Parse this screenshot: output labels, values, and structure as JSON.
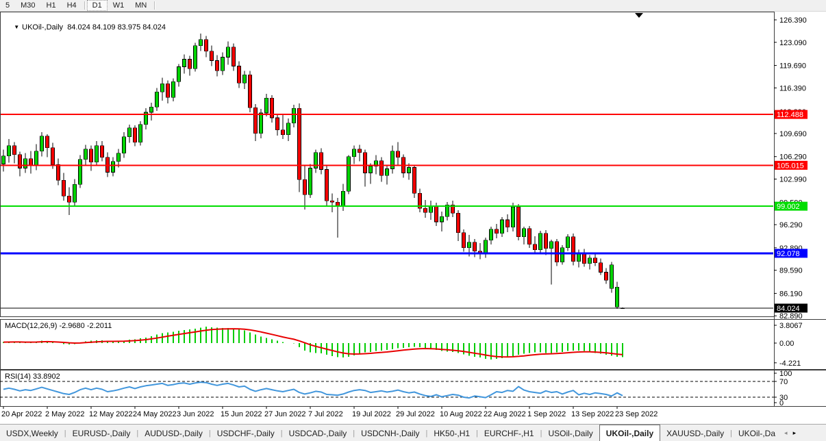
{
  "toolbar": {
    "timeframe_groups": [
      [
        "5",
        "M30",
        "H1",
        "H4"
      ],
      [
        "D1",
        "W1",
        "MN"
      ]
    ],
    "active_timeframe": "D1"
  },
  "chart": {
    "title_symbol": "UKOil-,Daily",
    "title_ohlc": "84.024 84.109 83.975 84.024",
    "colors": {
      "bull": "#00d400",
      "bear": "#f40000",
      "wick": "#000000",
      "macd_bar": "#00cc00",
      "macd_signal": "#e80000",
      "rsi_line": "#4196dc",
      "line_red": "#ff0000",
      "line_green": "#00dd00",
      "line_blue": "#0000ff",
      "bid_line": "#000000"
    }
  },
  "price_axis": {
    "ticks": [
      "126.390",
      "123.090",
      "119.690",
      "116.390",
      "112.890",
      "109.690",
      "106.290",
      "102.990",
      "99.590",
      "96.290",
      "92.890",
      "89.590",
      "86.190",
      "82.890"
    ],
    "line_labels": [
      {
        "text": "112.488",
        "bg": "#ff0000",
        "fg": "#ffffff"
      },
      {
        "text": "105.015",
        "bg": "#ff0000",
        "fg": "#ffffff"
      },
      {
        "text": "99.002",
        "bg": "#00dd00",
        "fg": "#ffffff"
      },
      {
        "text": "92.078",
        "bg": "#0000ff",
        "fg": "#ffffff"
      },
      {
        "text": "84.024",
        "bg": "#000000",
        "fg": "#ffffff"
      }
    ]
  },
  "macd_panel": {
    "label": "MACD(12,26,9) -2.9680 -2.2011",
    "scale": [
      "3.8067",
      "0.00",
      "-4.221"
    ]
  },
  "rsi_panel": {
    "label": "RSI(14) 33.8902",
    "scale": [
      "100",
      "70",
      "30",
      "0"
    ],
    "levels": [
      70,
      30
    ]
  },
  "x_axis": {
    "labels": [
      "20 Apr 2022",
      "2 May 2022",
      "12 May 2022",
      "24 May 2022",
      "3 Jun 2022",
      "15 Jun 2022",
      "27 Jun 2022",
      "7 Jul 2022",
      "19 Jul 2022",
      "29 Jul 2022",
      "10 Aug 2022",
      "22 Aug 2022",
      "1 Sep 2022",
      "13 Sep 2022",
      "23 Sep 2022"
    ],
    "label_bar_index": [
      0,
      8,
      16,
      24,
      32,
      40,
      48,
      56,
      64,
      72,
      80,
      88,
      96,
      104,
      112
    ]
  },
  "tabs": {
    "items": [
      "USDX,Weekly",
      "EURUSD-,Daily",
      "AUDUSD-,Daily",
      "USDCHF-,Daily",
      "USDCAD-,Daily",
      "USDCNH-,Daily",
      "HK50-,H1",
      "EURCHF-,H1",
      "USOil-,Daily",
      "UKOil-,Daily",
      "XAUUSD-,Daily",
      "UKOil-,Da"
    ],
    "active": "UKOil-,Daily",
    "nav_left": "◂",
    "nav_right": "▸"
  },
  "chart_data": {
    "type": "candlestick",
    "symbol": "UKOil-",
    "timeframe": "Daily",
    "ylim": [
      82.0,
      126.39
    ],
    "hlines": [
      {
        "price": 112.488,
        "color": "#ff0000",
        "w": 2
      },
      {
        "price": 105.015,
        "color": "#ff0000",
        "w": 2
      },
      {
        "price": 99.002,
        "color": "#00dd00",
        "w": 2
      },
      {
        "price": 92.078,
        "color": "#0000ff",
        "w": 3
      },
      {
        "price": 84.024,
        "color": "#000000",
        "w": 1
      }
    ],
    "candles": [
      [
        "20 Apr",
        105.2,
        107.3,
        104.1,
        106.4
      ],
      [
        "21 Apr",
        106.4,
        108.9,
        105.4,
        107.9
      ],
      [
        "22 Apr",
        107.9,
        108.4,
        105.3,
        106.6
      ],
      [
        "25 Apr",
        106.6,
        107.0,
        103.4,
        104.6
      ],
      [
        "26 Apr",
        104.6,
        106.8,
        103.9,
        106.0
      ],
      [
        "27 Apr",
        106.0,
        107.1,
        103.8,
        105.0
      ],
      [
        "28 Apr",
        105.0,
        108.1,
        104.3,
        107.1
      ],
      [
        "29 Apr",
        107.1,
        109.9,
        106.3,
        109.3
      ],
      [
        "2 May",
        109.3,
        109.6,
        106.2,
        107.6
      ],
      [
        "3 May",
        107.6,
        108.3,
        104.5,
        105.1
      ],
      [
        "4 May",
        105.1,
        106.0,
        102.1,
        102.8
      ],
      [
        "5 May",
        102.8,
        103.9,
        99.8,
        100.5
      ],
      [
        "6 May",
        100.5,
        101.8,
        97.7,
        99.6
      ],
      [
        "9 May",
        99.6,
        103.0,
        98.9,
        102.2
      ],
      [
        "10 May",
        102.2,
        106.5,
        101.7,
        105.9
      ],
      [
        "11 May",
        105.9,
        108.0,
        104.9,
        107.4
      ],
      [
        "12 May",
        107.4,
        107.9,
        104.2,
        105.5
      ],
      [
        "13 May",
        105.5,
        108.6,
        105.0,
        107.9
      ],
      [
        "16 May",
        107.9,
        108.6,
        105.6,
        106.2
      ],
      [
        "17 May",
        106.2,
        106.9,
        103.3,
        104.0
      ],
      [
        "18 May",
        104.0,
        106.2,
        103.4,
        105.6
      ],
      [
        "19 May",
        105.6,
        107.4,
        104.7,
        106.8
      ],
      [
        "20 May",
        106.8,
        109.9,
        106.1,
        109.2
      ],
      [
        "23 May",
        109.2,
        111.0,
        108.3,
        110.5
      ],
      [
        "24 May",
        110.5,
        110.9,
        107.8,
        108.4
      ],
      [
        "25 May",
        108.4,
        111.5,
        107.9,
        111.0
      ],
      [
        "26 May",
        111.0,
        113.4,
        110.3,
        112.8
      ],
      [
        "27 May",
        112.8,
        114.2,
        111.6,
        113.6
      ],
      [
        "30 May",
        113.6,
        116.4,
        113.0,
        115.8
      ],
      [
        "31 May",
        115.8,
        117.9,
        114.5,
        117.0
      ],
      [
        "1 Jun",
        117.0,
        117.5,
        114.1,
        115.0
      ],
      [
        "2 Jun",
        115.0,
        117.8,
        114.4,
        117.3
      ],
      [
        "3 Jun",
        117.3,
        119.9,
        116.6,
        119.5
      ],
      [
        "6 Jun",
        119.5,
        121.3,
        118.5,
        120.6
      ],
      [
        "7 Jun",
        120.6,
        121.1,
        118.2,
        119.2
      ],
      [
        "8 Jun",
        119.2,
        123.0,
        118.8,
        122.6
      ],
      [
        "9 Jun",
        122.6,
        124.4,
        121.8,
        123.5
      ],
      [
        "10 Jun",
        123.5,
        124.0,
        120.9,
        121.8
      ],
      [
        "13 Jun",
        121.8,
        122.6,
        119.6,
        120.4
      ],
      [
        "14 Jun",
        120.4,
        121.2,
        118.1,
        118.9
      ],
      [
        "15 Jun",
        118.9,
        121.6,
        118.3,
        120.9
      ],
      [
        "16 Jun",
        120.9,
        123.2,
        119.8,
        122.4
      ],
      [
        "17 Jun",
        122.4,
        122.9,
        118.9,
        119.6
      ],
      [
        "20 Jun",
        119.6,
        120.3,
        116.4,
        117.1
      ],
      [
        "21 Jun",
        117.1,
        118.9,
        116.2,
        118.3
      ],
      [
        "22 Jun",
        118.3,
        118.9,
        112.8,
        113.5
      ],
      [
        "23 Jun",
        113.5,
        114.0,
        108.6,
        109.7
      ],
      [
        "24 Jun",
        109.7,
        113.3,
        109.0,
        112.7
      ],
      [
        "27 Jun",
        112.7,
        115.5,
        112.2,
        114.9
      ],
      [
        "28 Jun",
        114.9,
        115.3,
        111.3,
        112.0
      ],
      [
        "29 Jun",
        112.0,
        112.6,
        109.4,
        110.2
      ],
      [
        "30 Jun",
        110.2,
        112.4,
        108.9,
        109.5
      ],
      [
        "1 Jul",
        109.5,
        111.9,
        108.6,
        111.2
      ],
      [
        "4 Jul",
        111.2,
        113.9,
        110.6,
        113.4
      ],
      [
        "5 Jul",
        113.4,
        114.1,
        101.1,
        102.9
      ],
      [
        "6 Jul",
        102.9,
        105.0,
        98.5,
        100.7
      ],
      [
        "7 Jul",
        100.7,
        105.2,
        100.2,
        104.6
      ],
      [
        "8 Jul",
        104.6,
        107.3,
        103.9,
        106.9
      ],
      [
        "11 Jul",
        106.9,
        107.5,
        103.7,
        104.4
      ],
      [
        "12 Jul",
        104.4,
        105.0,
        99.0,
        99.8
      ],
      [
        "13 Jul",
        99.8,
        100.9,
        98.1,
        99.6
      ],
      [
        "14 Jul",
        99.6,
        100.2,
        94.4,
        99.1
      ],
      [
        "15 Jul",
        99.1,
        102.3,
        98.3,
        101.2
      ],
      [
        "18 Jul",
        101.2,
        106.5,
        100.8,
        106.3
      ],
      [
        "19 Jul",
        106.3,
        107.9,
        105.2,
        107.4
      ],
      [
        "20 Jul",
        107.4,
        108.0,
        105.6,
        106.9
      ],
      [
        "21 Jul",
        106.9,
        107.3,
        101.9,
        103.9
      ],
      [
        "22 Jul",
        103.9,
        105.3,
        102.3,
        104.9
      ],
      [
        "25 Jul",
        104.9,
        106.5,
        103.7,
        105.7
      ],
      [
        "26 Jul",
        105.7,
        106.2,
        102.6,
        103.5
      ],
      [
        "27 Jul",
        103.5,
        105.1,
        102.2,
        104.5
      ],
      [
        "28 Jul",
        104.5,
        107.9,
        103.8,
        107.1
      ],
      [
        "29 Jul",
        107.1,
        108.4,
        105.0,
        106.2
      ],
      [
        "1 Aug",
        106.2,
        106.6,
        103.2,
        103.9
      ],
      [
        "2 Aug",
        103.9,
        105.3,
        102.9,
        104.7
      ],
      [
        "3 Aug",
        104.7,
        105.0,
        100.2,
        100.9
      ],
      [
        "4 Aug",
        100.9,
        101.6,
        98.1,
        98.7
      ],
      [
        "5 Aug",
        98.7,
        99.9,
        97.3,
        98.1
      ],
      [
        "8 Aug",
        98.1,
        99.8,
        97.0,
        99.1
      ],
      [
        "9 Aug",
        99.1,
        99.5,
        96.1,
        96.7
      ],
      [
        "10 Aug",
        96.7,
        98.2,
        95.3,
        97.5
      ],
      [
        "11 Aug",
        97.5,
        99.6,
        96.9,
        99.2
      ],
      [
        "12 Aug",
        99.2,
        99.8,
        97.4,
        98.0
      ],
      [
        "15 Aug",
        98.0,
        98.4,
        93.9,
        95.1
      ],
      [
        "16 Aug",
        95.1,
        95.6,
        92.3,
        92.9
      ],
      [
        "17 Aug",
        92.9,
        94.8,
        91.6,
        93.7
      ],
      [
        "18 Aug",
        93.7,
        94.2,
        91.5,
        92.4
      ],
      [
        "19 Aug",
        92.4,
        93.6,
        91.2,
        92.0
      ],
      [
        "22 Aug",
        92.0,
        94.4,
        91.4,
        94.0
      ],
      [
        "23 Aug",
        94.0,
        96.0,
        93.4,
        95.6
      ],
      [
        "24 Aug",
        95.6,
        96.4,
        94.3,
        95.0
      ],
      [
        "25 Aug",
        95.0,
        97.4,
        94.5,
        97.0
      ],
      [
        "26 Aug",
        97.0,
        97.8,
        95.2,
        95.9
      ],
      [
        "29 Aug",
        95.9,
        99.5,
        95.3,
        98.9
      ],
      [
        "30 Aug",
        98.9,
        99.3,
        94.0,
        94.5
      ],
      [
        "31 Aug",
        94.5,
        96.0,
        93.4,
        95.7
      ],
      [
        "1 Sep",
        95.7,
        96.1,
        92.9,
        93.4
      ],
      [
        "2 Sep",
        93.4,
        94.6,
        92.0,
        92.6
      ],
      [
        "5 Sep",
        92.6,
        95.4,
        92.2,
        95.0
      ],
      [
        "6 Sep",
        95.0,
        95.5,
        91.8,
        92.8
      ],
      [
        "7 Sep",
        92.8,
        94.1,
        87.5,
        93.8
      ],
      [
        "8 Sep",
        93.8,
        94.2,
        90.2,
        90.8
      ],
      [
        "9 Sep",
        90.8,
        93.3,
        90.4,
        92.9
      ],
      [
        "12 Sep",
        92.9,
        94.9,
        92.4,
        94.5
      ],
      [
        "13 Sep",
        94.5,
        95.0,
        90.3,
        90.9
      ],
      [
        "14 Sep",
        90.9,
        92.6,
        90.0,
        92.2
      ],
      [
        "15 Sep",
        92.2,
        92.7,
        90.1,
        90.6
      ],
      [
        "16 Sep",
        90.6,
        91.8,
        89.7,
        91.4
      ],
      [
        "19 Sep",
        91.4,
        92.0,
        90.2,
        90.7
      ],
      [
        "20 Sep",
        90.7,
        91.3,
        88.9,
        89.3
      ],
      [
        "21 Sep",
        89.3,
        89.9,
        87.6,
        88.1
      ],
      [
        "22 Sep",
        86.9,
        90.8,
        86.3,
        90.4
      ],
      [
        "23 Sep",
        84.2,
        87.9,
        83.9,
        87.1
      ],
      [
        "26 Sep",
        84.024,
        84.109,
        83.975,
        84.024
      ]
    ],
    "indicators": [
      {
        "name": "MACD(12,26,9)",
        "current": -2.968,
        "signal_current": -2.2011,
        "scale_max": 3.8067,
        "scale_min": -4.221,
        "values": [
          0.2,
          0.3,
          0.3,
          0.2,
          0.1,
          0.2,
          0.3,
          0.5,
          0.4,
          0.2,
          0.0,
          -0.2,
          -0.3,
          -0.2,
          0.1,
          0.4,
          0.5,
          0.6,
          0.6,
          0.5,
          0.4,
          0.4,
          0.5,
          0.7,
          0.8,
          1.0,
          1.2,
          1.5,
          1.8,
          2.1,
          2.3,
          2.4,
          2.6,
          2.8,
          2.9,
          3.1,
          3.3,
          3.5,
          3.4,
          3.3,
          3.2,
          3.2,
          3.1,
          2.9,
          2.7,
          2.3,
          1.8,
          1.4,
          1.1,
          0.8,
          0.5,
          0.2,
          0.0,
          -0.1,
          -0.9,
          -1.6,
          -2.0,
          -2.1,
          -2.2,
          -2.5,
          -2.8,
          -3.0,
          -3.1,
          -2.9,
          -2.6,
          -2.3,
          -2.0,
          -1.9,
          -1.7,
          -1.6,
          -1.5,
          -1.3,
          -1.1,
          -1.0,
          -0.9,
          -0.8,
          -0.9,
          -1.1,
          -1.3,
          -1.5,
          -1.7,
          -1.8,
          -1.9,
          -2.1,
          -2.4,
          -2.7,
          -2.9,
          -3.1,
          -3.4,
          -3.5,
          -3.4,
          -3.2,
          -3.0,
          -2.8,
          -2.5,
          -2.3,
          -2.1,
          -2.0,
          -2.0,
          -2.1,
          -2.1,
          -2.0,
          -1.9,
          -1.7,
          -1.6,
          -1.6,
          -1.7,
          -1.9,
          -2.1,
          -2.3,
          -2.5,
          -2.7,
          -2.9,
          -2.97
        ]
      },
      {
        "name": "RSI(14)",
        "current": 33.8902,
        "range": [
          0,
          100
        ],
        "levels": [
          70,
          30
        ],
        "values": [
          50,
          53,
          50,
          46,
          49,
          47,
          51,
          55,
          51,
          47,
          43,
          39,
          37,
          42,
          49,
          53,
          49,
          53,
          50,
          44,
          46,
          49,
          53,
          56,
          52,
          56,
          59,
          61,
          63,
          65,
          60,
          62,
          65,
          66,
          63,
          66,
          68,
          67,
          63,
          60,
          63,
          65,
          61,
          56,
          58,
          50,
          45,
          49,
          52,
          49,
          46,
          44,
          47,
          50,
          42,
          38,
          41,
          45,
          43,
          37,
          36,
          35,
          38,
          43,
          47,
          49,
          47,
          42,
          44,
          46,
          43,
          45,
          48,
          44,
          41,
          43,
          38,
          34,
          32,
          36,
          31,
          34,
          37,
          35,
          30,
          28,
          33,
          31,
          29,
          36,
          44,
          42,
          47,
          45,
          57,
          48,
          44,
          42,
          40,
          46,
          42,
          44,
          38,
          43,
          47,
          36,
          40,
          37,
          41,
          39,
          37,
          33,
          41,
          33.89
        ]
      }
    ]
  }
}
